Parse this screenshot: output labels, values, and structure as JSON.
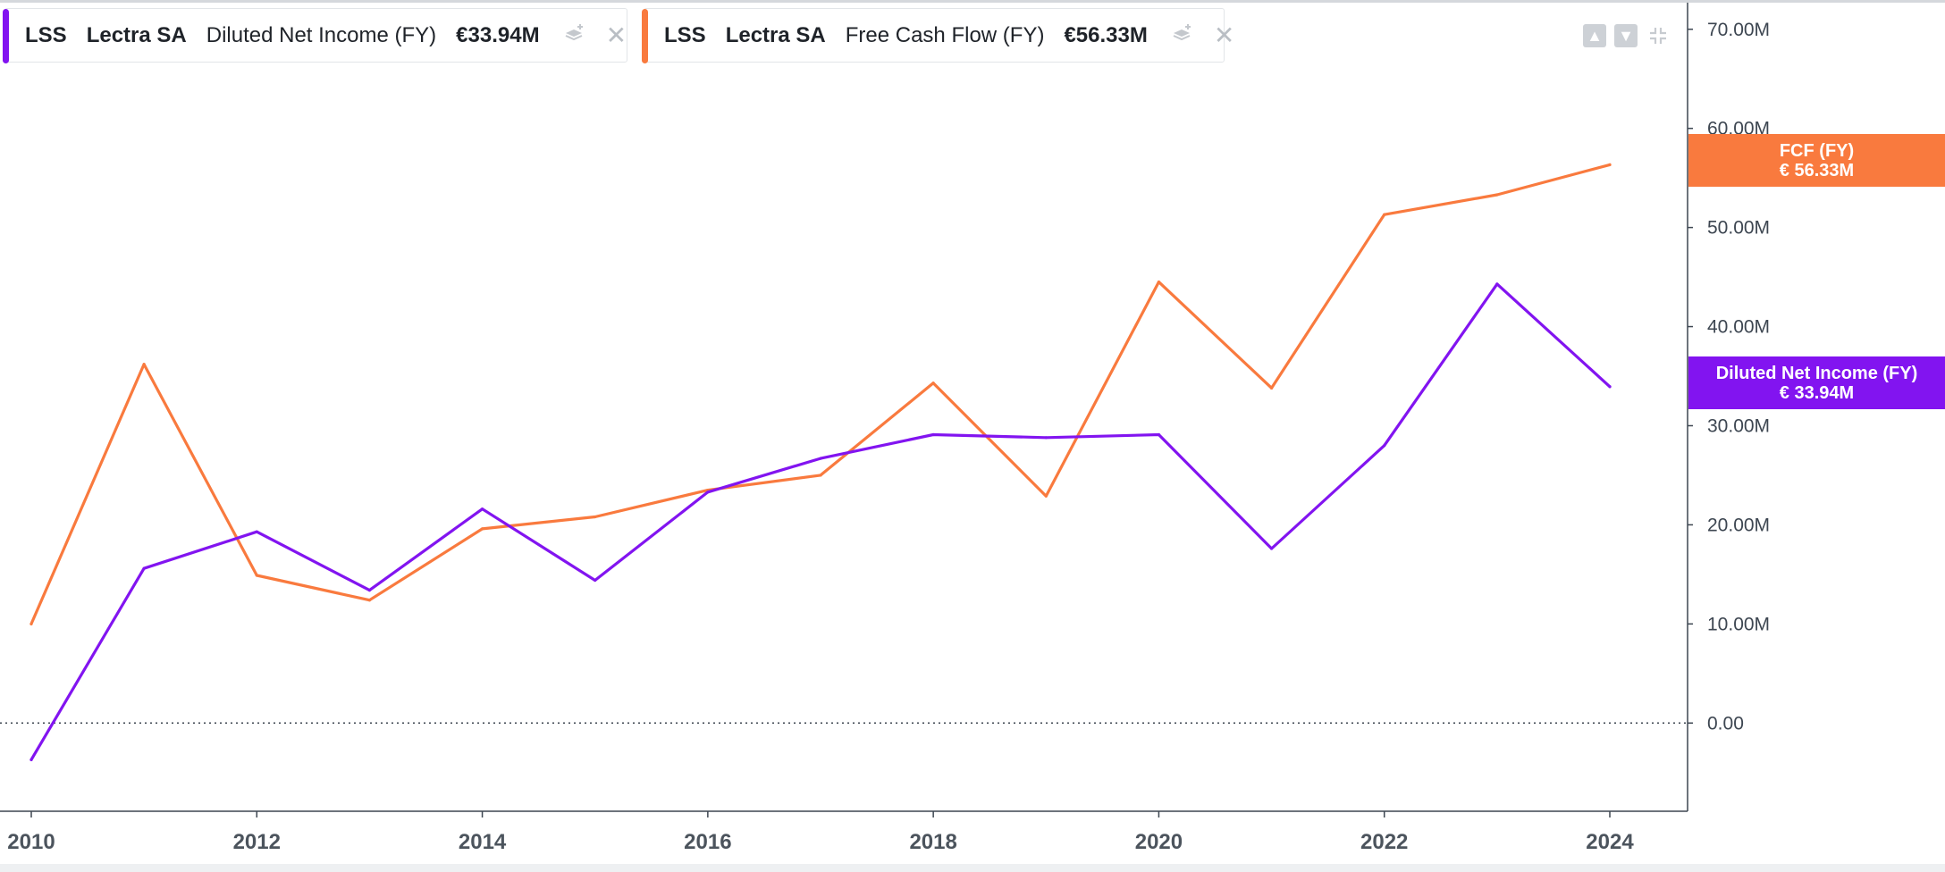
{
  "legends": [
    {
      "ticker": "LSS",
      "company": "Lectra SA",
      "metric": "Diluted Net Income (FY)",
      "value": "€33.94M",
      "color": "#8214f0"
    },
    {
      "ticker": "LSS",
      "company": "Lectra SA",
      "metric": "Free Cash Flow (FY)",
      "value": "€56.33M",
      "color": "#f97a3e"
    }
  ],
  "icons": {
    "layers": "layers-icon",
    "close": "close-icon",
    "move_up": "arrow-up-icon",
    "move_down": "arrow-down-icon",
    "collapse": "collapse-icon"
  },
  "tags": {
    "fcf": {
      "line1": "FCF (FY)",
      "line2": "€ 56.33M",
      "color": "#f97a3e"
    },
    "dni": {
      "line1": "Diluted Net Income (FY)",
      "line2": "€ 33.94M",
      "color": "#8214f0"
    }
  },
  "chart_data": {
    "type": "line",
    "x": [
      2010,
      2011,
      2012,
      2013,
      2014,
      2015,
      2016,
      2017,
      2018,
      2019,
      2020,
      2021,
      2022,
      2023,
      2024
    ],
    "series": [
      {
        "name": "Diluted Net Income (FY)",
        "color": "#8214f0",
        "values": [
          -3.7,
          15.6,
          19.3,
          13.4,
          21.6,
          14.4,
          23.3,
          26.7,
          29.1,
          28.8,
          29.1,
          17.6,
          28.0,
          44.3,
          33.94
        ]
      },
      {
        "name": "Free Cash Flow (FY)",
        "color": "#f97a3e",
        "values": [
          10.0,
          36.2,
          14.9,
          12.4,
          19.6,
          20.8,
          23.5,
          25.0,
          34.3,
          22.9,
          44.5,
          33.8,
          51.3,
          53.3,
          56.33
        ]
      }
    ],
    "y_ticks": [
      "70.00M",
      "60.00M",
      "50.00M",
      "40.00M",
      "30.00M",
      "20.00M",
      "10.00M",
      "0.00"
    ],
    "y_tick_values": [
      70,
      60,
      50,
      40,
      30,
      20,
      10,
      0
    ],
    "x_ticks": [
      "2010",
      "2012",
      "2014",
      "2016",
      "2018",
      "2020",
      "2022",
      "2024"
    ],
    "x_tick_values": [
      2010,
      2012,
      2014,
      2016,
      2018,
      2020,
      2022,
      2024
    ],
    "ylim": [
      -8.9,
      70.7
    ],
    "xlim": [
      2010,
      2024
    ],
    "zero_line": "dotted",
    "grid": false
  }
}
